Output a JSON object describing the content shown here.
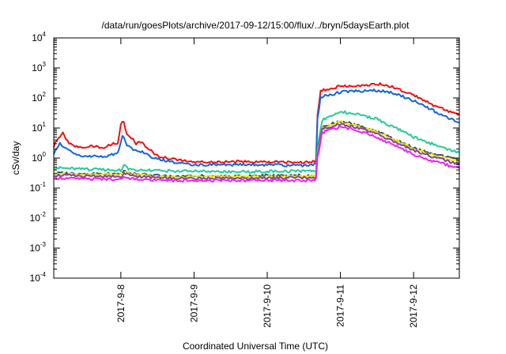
{
  "chart_data": {
    "type": "line",
    "title": "/data/run/goesPlots/archive/2017-09-12/15:00/flux/../bryn/5daysEarth.plot",
    "xlabel": "Coordinated Universal Time (UTC)",
    "ylabel": "cSv/day",
    "yscale": "log",
    "ylim": [
      0.0001,
      10000
    ],
    "y_ticks": [
      {
        "base": "10",
        "exp": "-4",
        "value": 0.0001
      },
      {
        "base": "10",
        "exp": "-3",
        "value": 0.001
      },
      {
        "base": "10",
        "exp": "-2",
        "value": 0.01
      },
      {
        "base": "10",
        "exp": "-1",
        "value": 0.1
      },
      {
        "base": "10",
        "exp": "0",
        "value": 1
      },
      {
        "base": "10",
        "exp": "1",
        "value": 10
      },
      {
        "base": "10",
        "exp": "2",
        "value": 100
      },
      {
        "base": "10",
        "exp": "3",
        "value": 1000
      },
      {
        "base": "10",
        "exp": "4",
        "value": 10000
      }
    ],
    "xlim": [
      "2017-09-07T02:00",
      "2017-09-12T15:00"
    ],
    "x_ticks": [
      {
        "label": "2017-9-8",
        "value": "2017-09-08"
      },
      {
        "label": "2017-9-9",
        "value": "2017-09-09"
      },
      {
        "label": "2017-9-10",
        "value": "2017-09-10"
      },
      {
        "label": "2017-9-11",
        "value": "2017-09-11"
      },
      {
        "label": "2017-9-12",
        "value": "2017-09-12"
      }
    ],
    "grid": false,
    "series": [
      {
        "color": "#ee1111",
        "x": [
          "2017-09-07T02:00",
          "2017-09-07T03:30",
          "2017-09-07T05:00",
          "2017-09-07T07:00",
          "2017-09-07T10:00",
          "2017-09-07T14:00",
          "2017-09-07T18:00",
          "2017-09-07T21:00",
          "2017-09-07T23:00",
          "2017-09-08T00:00",
          "2017-09-08T01:00",
          "2017-09-08T02:00",
          "2017-09-08T04:00",
          "2017-09-08T05:00",
          "2017-09-08T06:00",
          "2017-09-08T07:00",
          "2017-09-08T09:00",
          "2017-09-08T12:00",
          "2017-09-08T18:00",
          "2017-09-09T00:00",
          "2017-09-09T12:00",
          "2017-09-10T00:00",
          "2017-09-10T12:00",
          "2017-09-10T16:00",
          "2017-09-10T16:30",
          "2017-09-10T17:30",
          "2017-09-10T20:00",
          "2017-09-11T00:00",
          "2017-09-11T06:00",
          "2017-09-11T12:00",
          "2017-09-11T18:00",
          "2017-09-12T00:00",
          "2017-09-12T06:00",
          "2017-09-12T12:00",
          "2017-09-12T15:00"
        ],
        "y": [
          2.5,
          5,
          6.5,
          3,
          2.2,
          2.5,
          2.2,
          2.8,
          3.2,
          14,
          16,
          6,
          4,
          3,
          3.5,
          3.2,
          2,
          1.2,
          0.9,
          0.75,
          0.75,
          0.75,
          0.7,
          0.8,
          30,
          170,
          200,
          250,
          260,
          300,
          220,
          130,
          60,
          35,
          28
        ]
      },
      {
        "color": "#1166dd",
        "x": [
          "2017-09-07T02:00",
          "2017-09-07T04:00",
          "2017-09-07T06:00",
          "2017-09-07T10:00",
          "2017-09-07T18:00",
          "2017-09-07T23:00",
          "2017-09-08T00:30",
          "2017-09-08T02:00",
          "2017-09-08T04:00",
          "2017-09-08T06:00",
          "2017-09-08T09:00",
          "2017-09-08T12:00",
          "2017-09-08T18:00",
          "2017-09-09T00:00",
          "2017-09-09T12:00",
          "2017-09-10T00:00",
          "2017-09-10T12:00",
          "2017-09-10T16:00",
          "2017-09-10T16:30",
          "2017-09-10T17:30",
          "2017-09-10T20:00",
          "2017-09-11T00:00",
          "2017-09-11T06:00",
          "2017-09-11T12:00",
          "2017-09-11T18:00",
          "2017-09-12T00:00",
          "2017-09-12T06:00",
          "2017-09-12T12:00",
          "2017-09-12T15:00"
        ],
        "y": [
          1.4,
          3,
          2,
          1.2,
          1.1,
          1.4,
          6,
          2.5,
          2,
          1.8,
          1.2,
          0.9,
          0.7,
          0.6,
          0.6,
          0.6,
          0.55,
          0.6,
          20,
          110,
          120,
          160,
          170,
          180,
          140,
          80,
          40,
          20,
          15
        ]
      },
      {
        "color": "#22cc99",
        "x": [
          "2017-09-07T02:00",
          "2017-09-07T12:00",
          "2017-09-08T00:00",
          "2017-09-08T01:00",
          "2017-09-08T03:00",
          "2017-09-08T12:00",
          "2017-09-09T00:00",
          "2017-09-09T12:00",
          "2017-09-10T00:00",
          "2017-09-10T12:00",
          "2017-09-10T16:00",
          "2017-09-10T16:30",
          "2017-09-10T18:00",
          "2017-09-11T00:00",
          "2017-09-11T06:00",
          "2017-09-11T12:00",
          "2017-09-11T18:00",
          "2017-09-12T00:00",
          "2017-09-12T06:00",
          "2017-09-12T12:00",
          "2017-09-12T15:00"
        ],
        "y": [
          0.48,
          0.42,
          0.4,
          0.55,
          0.42,
          0.38,
          0.36,
          0.35,
          0.36,
          0.37,
          0.38,
          2.5,
          18,
          35,
          28,
          20,
          10,
          5,
          3,
          1.8,
          1.5
        ]
      },
      {
        "color": "#445566",
        "x": [
          "2017-09-07T02:00",
          "2017-09-07T12:00",
          "2017-09-08T00:00",
          "2017-09-08T01:00",
          "2017-09-08T04:00",
          "2017-09-08T12:00",
          "2017-09-09T00:00",
          "2017-09-09T12:00",
          "2017-09-10T00:00",
          "2017-09-10T12:00",
          "2017-09-10T16:00",
          "2017-09-10T16:30",
          "2017-09-10T18:00",
          "2017-09-11T00:00",
          "2017-09-11T06:00",
          "2017-09-11T12:00",
          "2017-09-11T18:00",
          "2017-09-12T00:00",
          "2017-09-12T06:00",
          "2017-09-12T12:00",
          "2017-09-12T15:00"
        ],
        "y": [
          0.32,
          0.3,
          0.3,
          0.36,
          0.3,
          0.26,
          0.25,
          0.25,
          0.26,
          0.26,
          0.27,
          1.5,
          11,
          17,
          12,
          8,
          4,
          2.2,
          1.4,
          1,
          0.85
        ]
      },
      {
        "color": "#eeee11",
        "x": [
          "2017-09-07T02:00",
          "2017-09-07T12:00",
          "2017-09-08T00:00",
          "2017-09-08T01:00",
          "2017-09-08T04:00",
          "2017-09-08T12:00",
          "2017-09-09T00:00",
          "2017-09-09T12:00",
          "2017-09-10T00:00",
          "2017-09-10T12:00",
          "2017-09-10T16:00",
          "2017-09-10T16:30",
          "2017-09-10T18:00",
          "2017-09-11T00:00",
          "2017-09-11T06:00",
          "2017-09-11T12:00",
          "2017-09-11T18:00",
          "2017-09-12T00:00",
          "2017-09-12T06:00",
          "2017-09-12T12:00",
          "2017-09-12T15:00"
        ],
        "y": [
          0.3,
          0.28,
          0.28,
          0.34,
          0.28,
          0.24,
          0.24,
          0.24,
          0.24,
          0.25,
          0.25,
          1.4,
          10,
          16,
          11,
          7.5,
          3.8,
          2,
          1.3,
          0.9,
          0.8
        ]
      },
      {
        "color": "#884499",
        "x": [
          "2017-09-07T02:00",
          "2017-09-07T12:00",
          "2017-09-08T00:00",
          "2017-09-08T01:00",
          "2017-09-08T04:00",
          "2017-09-08T12:00",
          "2017-09-09T00:00",
          "2017-09-09T12:00",
          "2017-09-10T00:00",
          "2017-09-10T12:00",
          "2017-09-10T16:00",
          "2017-09-10T16:30",
          "2017-09-10T18:00",
          "2017-09-11T00:00",
          "2017-09-11T06:00",
          "2017-09-11T12:00",
          "2017-09-11T18:00",
          "2017-09-12T00:00",
          "2017-09-12T06:00",
          "2017-09-12T12:00",
          "2017-09-12T15:00"
        ],
        "y": [
          0.27,
          0.25,
          0.25,
          0.3,
          0.25,
          0.22,
          0.21,
          0.21,
          0.22,
          0.22,
          0.23,
          1.3,
          9,
          14,
          10,
          6.5,
          3.3,
          1.8,
          1.1,
          0.75,
          0.65
        ]
      },
      {
        "color": "#ee22ee",
        "x": [
          "2017-09-07T02:00",
          "2017-09-07T12:00",
          "2017-09-08T00:00",
          "2017-09-08T01:00",
          "2017-09-08T04:00",
          "2017-09-08T12:00",
          "2017-09-09T00:00",
          "2017-09-09T12:00",
          "2017-09-10T00:00",
          "2017-09-10T12:00",
          "2017-09-10T16:00",
          "2017-09-10T16:30",
          "2017-09-10T18:00",
          "2017-09-11T00:00",
          "2017-09-11T06:00",
          "2017-09-11T12:00",
          "2017-09-11T18:00",
          "2017-09-12T00:00",
          "2017-09-12T06:00",
          "2017-09-12T12:00",
          "2017-09-12T15:00"
        ],
        "y": [
          0.22,
          0.2,
          0.2,
          0.24,
          0.2,
          0.18,
          0.18,
          0.18,
          0.18,
          0.18,
          0.19,
          1,
          7,
          11,
          8,
          5,
          2.5,
          1.3,
          0.8,
          0.55,
          0.45
        ]
      }
    ]
  }
}
